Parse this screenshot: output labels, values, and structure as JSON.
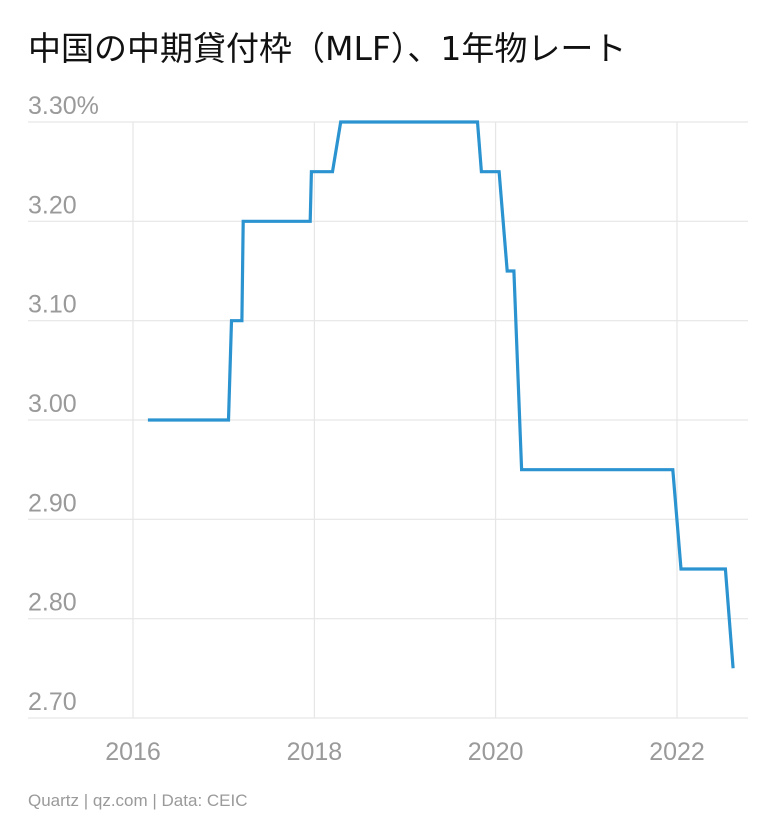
{
  "chart_data": {
    "type": "line",
    "title": "中国の中期貸付枠（MLF）、1年物レート",
    "xlabel": "",
    "ylabel": "",
    "ylim": [
      2.7,
      3.3
    ],
    "xlim": [
      "2016-01-01",
      "2022-12-01"
    ],
    "y_ticks": [
      {
        "value": 3.3,
        "label": "3.30%"
      },
      {
        "value": 3.2,
        "label": "3.20"
      },
      {
        "value": 3.1,
        "label": "3.10"
      },
      {
        "value": 3.0,
        "label": "3.00"
      },
      {
        "value": 2.9,
        "label": "2.90"
      },
      {
        "value": 2.8,
        "label": "2.80"
      },
      {
        "value": 2.7,
        "label": "2.70"
      }
    ],
    "x_ticks": [
      {
        "value": "2016-01-01",
        "label": "2016"
      },
      {
        "value": "2018-01-01",
        "label": "2018"
      },
      {
        "value": "2020-01-01",
        "label": "2020"
      },
      {
        "value": "2022-01-01",
        "label": "2022"
      }
    ],
    "grid": true,
    "series": [
      {
        "color": "#2a93d0",
        "points": [
          {
            "date": "2016-03-01",
            "value": 3.0
          },
          {
            "date": "2017-01-20",
            "value": 3.0
          },
          {
            "date": "2017-02-01",
            "value": 3.1
          },
          {
            "date": "2017-03-15",
            "value": 3.1
          },
          {
            "date": "2017-03-20",
            "value": 3.2
          },
          {
            "date": "2017-12-15",
            "value": 3.2
          },
          {
            "date": "2017-12-20",
            "value": 3.25
          },
          {
            "date": "2018-03-15",
            "value": 3.25
          },
          {
            "date": "2018-04-17",
            "value": 3.3
          },
          {
            "date": "2019-10-20",
            "value": 3.3
          },
          {
            "date": "2019-11-05",
            "value": 3.25
          },
          {
            "date": "2020-01-15",
            "value": 3.25
          },
          {
            "date": "2020-02-17",
            "value": 3.15
          },
          {
            "date": "2020-03-15",
            "value": 3.15
          },
          {
            "date": "2020-04-15",
            "value": 2.95
          },
          {
            "date": "2021-12-15",
            "value": 2.95
          },
          {
            "date": "2022-01-17",
            "value": 2.85
          },
          {
            "date": "2022-07-15",
            "value": 2.85
          },
          {
            "date": "2022-08-15",
            "value": 2.75
          }
        ]
      }
    ]
  },
  "footer": "Quartz | qz.com | Data: CEIC",
  "colors": {
    "line": "#2a93d0",
    "grid": "#e6e6e6",
    "tick_text": "#9a9a9a",
    "title_text": "#111111"
  }
}
